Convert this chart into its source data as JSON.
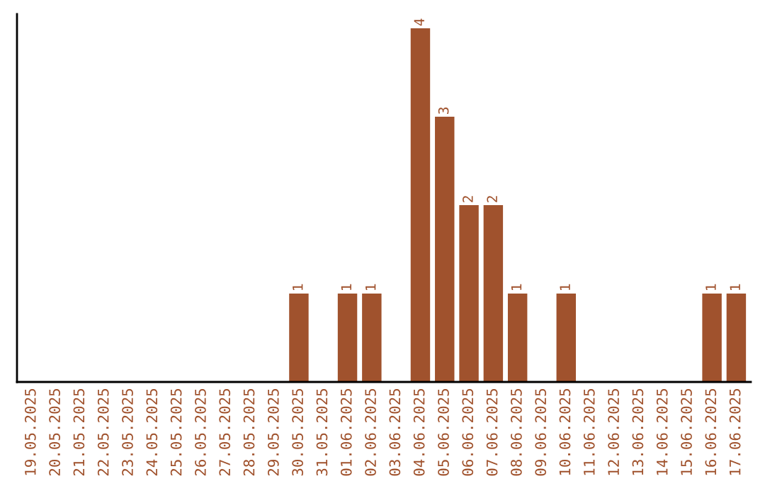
{
  "chart_data": {
    "type": "bar",
    "categories": [
      "19.05.2025",
      "20.05.2025",
      "21.05.2025",
      "22.05.2025",
      "23.05.2025",
      "24.05.2025",
      "25.05.2025",
      "26.05.2025",
      "27.05.2025",
      "28.05.2025",
      "29.05.2025",
      "30.05.2025",
      "31.05.2025",
      "01.06.2025",
      "02.06.2025",
      "03.06.2025",
      "04.06.2025",
      "05.06.2025",
      "06.06.2025",
      "07.06.2025",
      "08.06.2025",
      "09.06.2025",
      "10.06.2025",
      "11.06.2025",
      "12.06.2025",
      "13.06.2025",
      "14.06.2025",
      "15.06.2025",
      "16.06.2025",
      "17.06.2025"
    ],
    "values": [
      0,
      0,
      0,
      0,
      0,
      0,
      0,
      0,
      0,
      0,
      0,
      1,
      0,
      1,
      1,
      0,
      4,
      3,
      2,
      2,
      1,
      0,
      1,
      0,
      0,
      0,
      0,
      0,
      1,
      1
    ],
    "value_labels": [
      null,
      null,
      null,
      null,
      null,
      null,
      null,
      null,
      null,
      null,
      null,
      "1",
      null,
      "1",
      "1",
      null,
      "4",
      "3",
      "2",
      "2",
      "1",
      null,
      "1",
      null,
      null,
      null,
      null,
      null,
      "1",
      "1"
    ],
    "color": "#a0522d",
    "grid": false,
    "legend": false,
    "tick_labels": "x"
  }
}
